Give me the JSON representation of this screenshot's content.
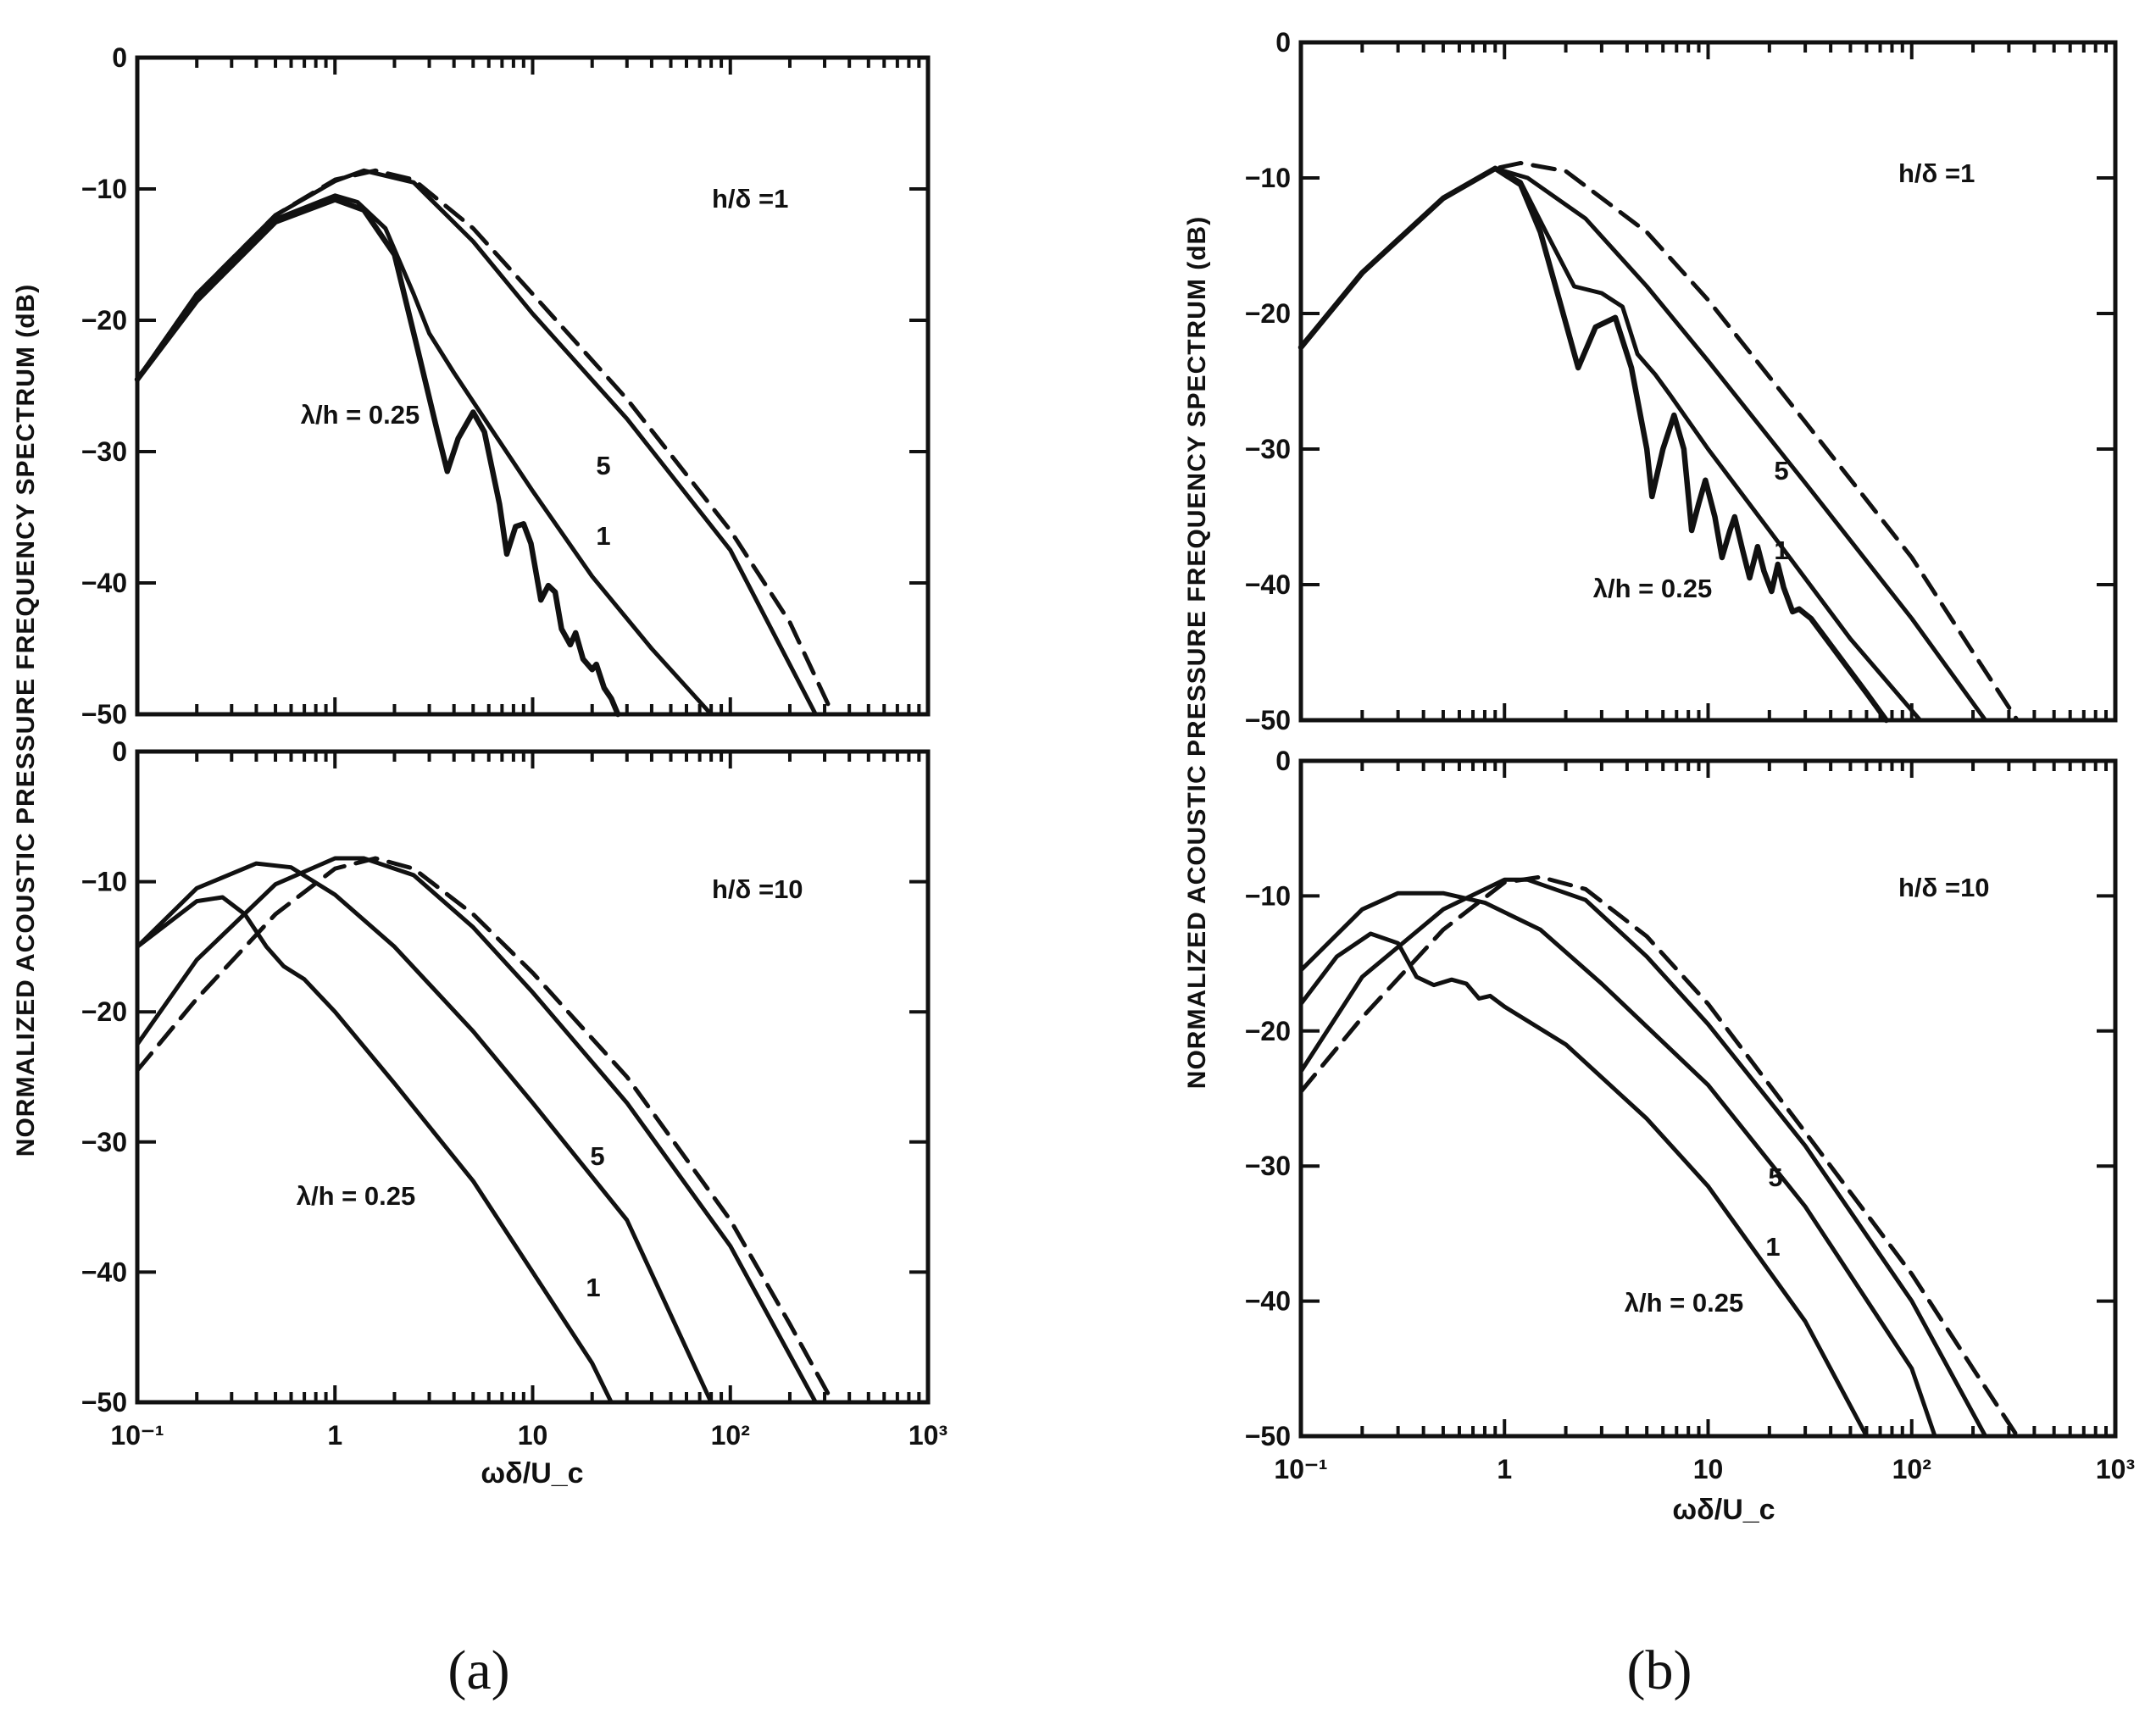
{
  "chart_data": [
    {
      "id": "a-top",
      "type": "line",
      "panel": "a",
      "annotation": "h/δ =1",
      "x_scale": "log",
      "xlim": [
        0.1,
        1000
      ],
      "ylim": [
        -50,
        0
      ],
      "y_ticks": [
        "0",
        "−10",
        "−20",
        "−30",
        "−40",
        "−50"
      ],
      "series": [
        {
          "name": "dashed",
          "label": "",
          "style": "dashed",
          "points": [
            [
              0.1,
              -24.5
            ],
            [
              0.2,
              -18
            ],
            [
              0.5,
              -12
            ],
            [
              1,
              -9.3
            ],
            [
              1.6,
              -8.6
            ],
            [
              2.5,
              -9.3
            ],
            [
              5,
              -13
            ],
            [
              10,
              -18
            ],
            [
              30,
              -26
            ],
            [
              100,
              -36
            ],
            [
              200,
              -43
            ],
            [
              330,
              -50
            ]
          ]
        },
        {
          "name": "5",
          "label": "5",
          "style": "solid",
          "points": [
            [
              0.1,
              -24.5
            ],
            [
              0.2,
              -18
            ],
            [
              0.5,
              -12
            ],
            [
              1,
              -9.4
            ],
            [
              1.4,
              -8.6
            ],
            [
              2.5,
              -9.5
            ],
            [
              5,
              -14
            ],
            [
              10,
              -19.5
            ],
            [
              30,
              -27.5
            ],
            [
              100,
              -37.5
            ],
            [
              270,
              -50
            ]
          ]
        },
        {
          "name": "1",
          "label": "1",
          "style": "solid",
          "points": [
            [
              0.1,
              -24.5
            ],
            [
              0.2,
              -18
            ],
            [
              0.5,
              -12.3
            ],
            [
              1,
              -10.5
            ],
            [
              1.3,
              -11
            ],
            [
              1.8,
              -13
            ],
            [
              2.5,
              -18
            ],
            [
              3,
              -21
            ],
            [
              4,
              -24
            ],
            [
              6,
              -28
            ],
            [
              10,
              -33
            ],
            [
              20,
              -39.5
            ],
            [
              40,
              -45
            ],
            [
              80,
              -50
            ]
          ]
        },
        {
          "name": "0.25",
          "label": "λ/h = 0.25",
          "style": "thick",
          "points": [
            [
              0.1,
              -24.5
            ],
            [
              0.2,
              -18.5
            ],
            [
              0.5,
              -12.5
            ],
            [
              1,
              -10.8
            ],
            [
              1.4,
              -11.6
            ],
            [
              2,
              -15
            ],
            [
              2.6,
              -22
            ],
            [
              3.3,
              -28.5
            ],
            [
              3.7,
              -31.5
            ],
            [
              4.2,
              -29
            ],
            [
              5,
              -27
            ],
            [
              5.7,
              -28.5
            ],
            [
              6.8,
              -34
            ],
            [
              7.4,
              -37.8
            ],
            [
              8.2,
              -35.7
            ],
            [
              9,
              -35.5
            ],
            [
              9.8,
              -37
            ],
            [
              11,
              -41.3
            ],
            [
              12,
              -40.2
            ],
            [
              13,
              -40.7
            ],
            [
              14,
              -43.5
            ],
            [
              15.5,
              -44.7
            ],
            [
              16.5,
              -43.8
            ],
            [
              18,
              -45.8
            ],
            [
              20,
              -46.6
            ],
            [
              21,
              -46.2
            ],
            [
              23,
              -48
            ],
            [
              25,
              -48.8
            ],
            [
              27,
              -50
            ]
          ]
        }
      ]
    },
    {
      "id": "a-bottom",
      "type": "line",
      "panel": "a",
      "annotation": "h/δ =10",
      "x_scale": "log",
      "xlim": [
        0.1,
        1000
      ],
      "ylim": [
        -50,
        0
      ],
      "x_ticks": [
        "10⁻¹",
        "1",
        "10",
        "10²",
        "10³"
      ],
      "y_ticks": [
        "0",
        "−10",
        "−20",
        "−30",
        "−40",
        "−50"
      ],
      "xlabel": "ωδ/U_c",
      "series": [
        {
          "name": "dashed",
          "label": "",
          "style": "dashed",
          "points": [
            [
              0.1,
              -24.5
            ],
            [
              0.2,
              -19
            ],
            [
              0.5,
              -12.5
            ],
            [
              1,
              -9
            ],
            [
              1.6,
              -8.2
            ],
            [
              2.5,
              -9
            ],
            [
              5,
              -12.5
            ],
            [
              10,
              -17
            ],
            [
              30,
              -25
            ],
            [
              100,
              -36
            ],
            [
              200,
              -44
            ],
            [
              330,
              -50
            ]
          ]
        },
        {
          "name": "5",
          "label": "5",
          "style": "solid",
          "points": [
            [
              0.1,
              -22.5
            ],
            [
              0.2,
              -16
            ],
            [
              0.5,
              -10.2
            ],
            [
              1,
              -8.2
            ],
            [
              1.4,
              -8.2
            ],
            [
              2.5,
              -9.5
            ],
            [
              5,
              -13.5
            ],
            [
              10,
              -18.5
            ],
            [
              30,
              -27
            ],
            [
              100,
              -38
            ],
            [
              270,
              -50
            ]
          ]
        },
        {
          "name": "1",
          "label": "1",
          "style": "solid",
          "points": [
            [
              0.1,
              -15
            ],
            [
              0.2,
              -10.5
            ],
            [
              0.4,
              -8.6
            ],
            [
              0.6,
              -8.9
            ],
            [
              1,
              -11
            ],
            [
              2,
              -15
            ],
            [
              5,
              -21.5
            ],
            [
              10,
              -27
            ],
            [
              30,
              -36
            ],
            [
              80,
              -50
            ]
          ]
        },
        {
          "name": "0.25",
          "label": "λ/h = 0.25",
          "style": "solid",
          "points": [
            [
              0.1,
              -15
            ],
            [
              0.2,
              -11.5
            ],
            [
              0.27,
              -11.2
            ],
            [
              0.35,
              -12.5
            ],
            [
              0.45,
              -15
            ],
            [
              0.55,
              -16.5
            ],
            [
              0.7,
              -17.5
            ],
            [
              1,
              -20
            ],
            [
              2,
              -25.5
            ],
            [
              5,
              -33
            ],
            [
              10,
              -40
            ],
            [
              20,
              -47
            ],
            [
              25,
              -50
            ]
          ]
        }
      ]
    },
    {
      "id": "b-top",
      "type": "line",
      "panel": "b",
      "annotation": "h/δ =1",
      "x_scale": "log",
      "xlim": [
        0.1,
        1000
      ],
      "ylim": [
        -50,
        0
      ],
      "y_ticks": [
        "0",
        "−10",
        "−20",
        "−30",
        "−40",
        "−50"
      ],
      "series": [
        {
          "name": "dashed",
          "label": "",
          "style": "dashed",
          "points": [
            [
              0.1,
              -22.5
            ],
            [
              0.2,
              -17
            ],
            [
              0.5,
              -11.5
            ],
            [
              0.9,
              -9.3
            ],
            [
              1.2,
              -8.9
            ],
            [
              2,
              -9.5
            ],
            [
              5,
              -14
            ],
            [
              10,
              -19
            ],
            [
              30,
              -28
            ],
            [
              100,
              -38
            ],
            [
              200,
              -45
            ],
            [
              330,
              -50
            ]
          ]
        },
        {
          "name": "5",
          "label": "5",
          "style": "solid",
          "points": [
            [
              0.1,
              -22.5
            ],
            [
              0.2,
              -17
            ],
            [
              0.5,
              -11.5
            ],
            [
              0.9,
              -9.3
            ],
            [
              1.3,
              -10
            ],
            [
              2.5,
              -13
            ],
            [
              5,
              -18
            ],
            [
              10,
              -23.5
            ],
            [
              30,
              -32.5
            ],
            [
              100,
              -42.5
            ],
            [
              230,
              -50
            ]
          ]
        },
        {
          "name": "1",
          "label": "1",
          "style": "solid",
          "points": [
            [
              0.1,
              -22.5
            ],
            [
              0.2,
              -17
            ],
            [
              0.5,
              -11.5
            ],
            [
              0.9,
              -9.3
            ],
            [
              1.2,
              -10.3
            ],
            [
              1.6,
              -14
            ],
            [
              2.2,
              -18
            ],
            [
              3,
              -18.5
            ],
            [
              3.8,
              -19.5
            ],
            [
              4.5,
              -23
            ],
            [
              5.5,
              -24.5
            ],
            [
              6.5,
              -26
            ],
            [
              10,
              -30
            ],
            [
              20,
              -36
            ],
            [
              50,
              -44
            ],
            [
              110,
              -50
            ]
          ]
        },
        {
          "name": "0.25",
          "label": "λ/h = 0.25",
          "style": "thick",
          "points": [
            [
              0.1,
              -22.5
            ],
            [
              0.2,
              -17
            ],
            [
              0.5,
              -11.5
            ],
            [
              0.9,
              -9.3
            ],
            [
              1.2,
              -10.5
            ],
            [
              1.5,
              -14
            ],
            [
              1.9,
              -19.5
            ],
            [
              2.3,
              -24
            ],
            [
              2.8,
              -21
            ],
            [
              3.5,
              -20.3
            ],
            [
              4.2,
              -24
            ],
            [
              5,
              -30
            ],
            [
              5.3,
              -33.5
            ],
            [
              6,
              -30
            ],
            [
              6.8,
              -27.5
            ],
            [
              7.6,
              -30
            ],
            [
              8.3,
              -36
            ],
            [
              9,
              -34
            ],
            [
              9.7,
              -32.3
            ],
            [
              10.8,
              -35
            ],
            [
              11.7,
              -38
            ],
            [
              12.8,
              -36
            ],
            [
              13.5,
              -35
            ],
            [
              14.8,
              -37.5
            ],
            [
              16,
              -39.5
            ],
            [
              17.5,
              -37.2
            ],
            [
              18.8,
              -39
            ],
            [
              20.5,
              -40.5
            ],
            [
              22,
              -38.5
            ],
            [
              23.5,
              -40.2
            ],
            [
              26,
              -42
            ],
            [
              28,
              -41.8
            ],
            [
              32,
              -42.5
            ],
            [
              60,
              -48
            ],
            [
              75,
              -50
            ]
          ]
        }
      ]
    },
    {
      "id": "b-bottom",
      "type": "line",
      "panel": "b",
      "annotation": "h/δ =10",
      "x_scale": "log",
      "xlim": [
        0.1,
        1000
      ],
      "ylim": [
        -50,
        0
      ],
      "x_ticks": [
        "10⁻¹",
        "1",
        "10",
        "10²",
        "10³"
      ],
      "y_ticks": [
        "0",
        "−10",
        "−20",
        "−30",
        "−40",
        "−50"
      ],
      "xlabel": "ωδ/U_c",
      "series": [
        {
          "name": "dashed",
          "label": "",
          "style": "dashed",
          "points": [
            [
              0.1,
              -24.5
            ],
            [
              0.2,
              -19
            ],
            [
              0.5,
              -12.5
            ],
            [
              1,
              -9
            ],
            [
              1.5,
              -8.6
            ],
            [
              2.5,
              -9.5
            ],
            [
              5,
              -13
            ],
            [
              10,
              -18
            ],
            [
              30,
              -27.5
            ],
            [
              100,
              -38
            ],
            [
              200,
              -45
            ],
            [
              330,
              -50
            ]
          ]
        },
        {
          "name": "5",
          "label": "5",
          "style": "solid",
          "points": [
            [
              0.1,
              -23
            ],
            [
              0.2,
              -16
            ],
            [
              0.5,
              -11
            ],
            [
              1,
              -8.8
            ],
            [
              1.3,
              -8.8
            ],
            [
              2.5,
              -10.3
            ],
            [
              5,
              -14.5
            ],
            [
              10,
              -19.5
            ],
            [
              30,
              -28.5
            ],
            [
              100,
              -40
            ],
            [
              230,
              -50
            ]
          ]
        },
        {
          "name": "1",
          "label": "1",
          "style": "solid",
          "points": [
            [
              0.1,
              -15.5
            ],
            [
              0.2,
              -11
            ],
            [
              0.3,
              -9.8
            ],
            [
              0.5,
              -9.8
            ],
            [
              0.8,
              -10.5
            ],
            [
              1.5,
              -12.5
            ],
            [
              3,
              -16.5
            ],
            [
              10,
              -24
            ],
            [
              30,
              -33
            ],
            [
              100,
              -45
            ],
            [
              130,
              -50
            ]
          ]
        },
        {
          "name": "0.25",
          "label": "λ/h = 0.25",
          "style": "solid",
          "points": [
            [
              0.1,
              -18
            ],
            [
              0.15,
              -14.5
            ],
            [
              0.22,
              -12.8
            ],
            [
              0.3,
              -13.5
            ],
            [
              0.37,
              -16
            ],
            [
              0.45,
              -16.6
            ],
            [
              0.55,
              -16.2
            ],
            [
              0.65,
              -16.5
            ],
            [
              0.75,
              -17.6
            ],
            [
              0.85,
              -17.4
            ],
            [
              1,
              -18.2
            ],
            [
              2,
              -21
            ],
            [
              5,
              -26.5
            ],
            [
              10,
              -31.5
            ],
            [
              30,
              -41.5
            ],
            [
              60,
              -50
            ]
          ]
        }
      ]
    }
  ],
  "shared_ylabel": "NORMALIZED ACOUSTIC PRESSURE FREQUENCY SPECTRUM (dB)",
  "captions": {
    "a": "(a)",
    "b": "(b)"
  }
}
